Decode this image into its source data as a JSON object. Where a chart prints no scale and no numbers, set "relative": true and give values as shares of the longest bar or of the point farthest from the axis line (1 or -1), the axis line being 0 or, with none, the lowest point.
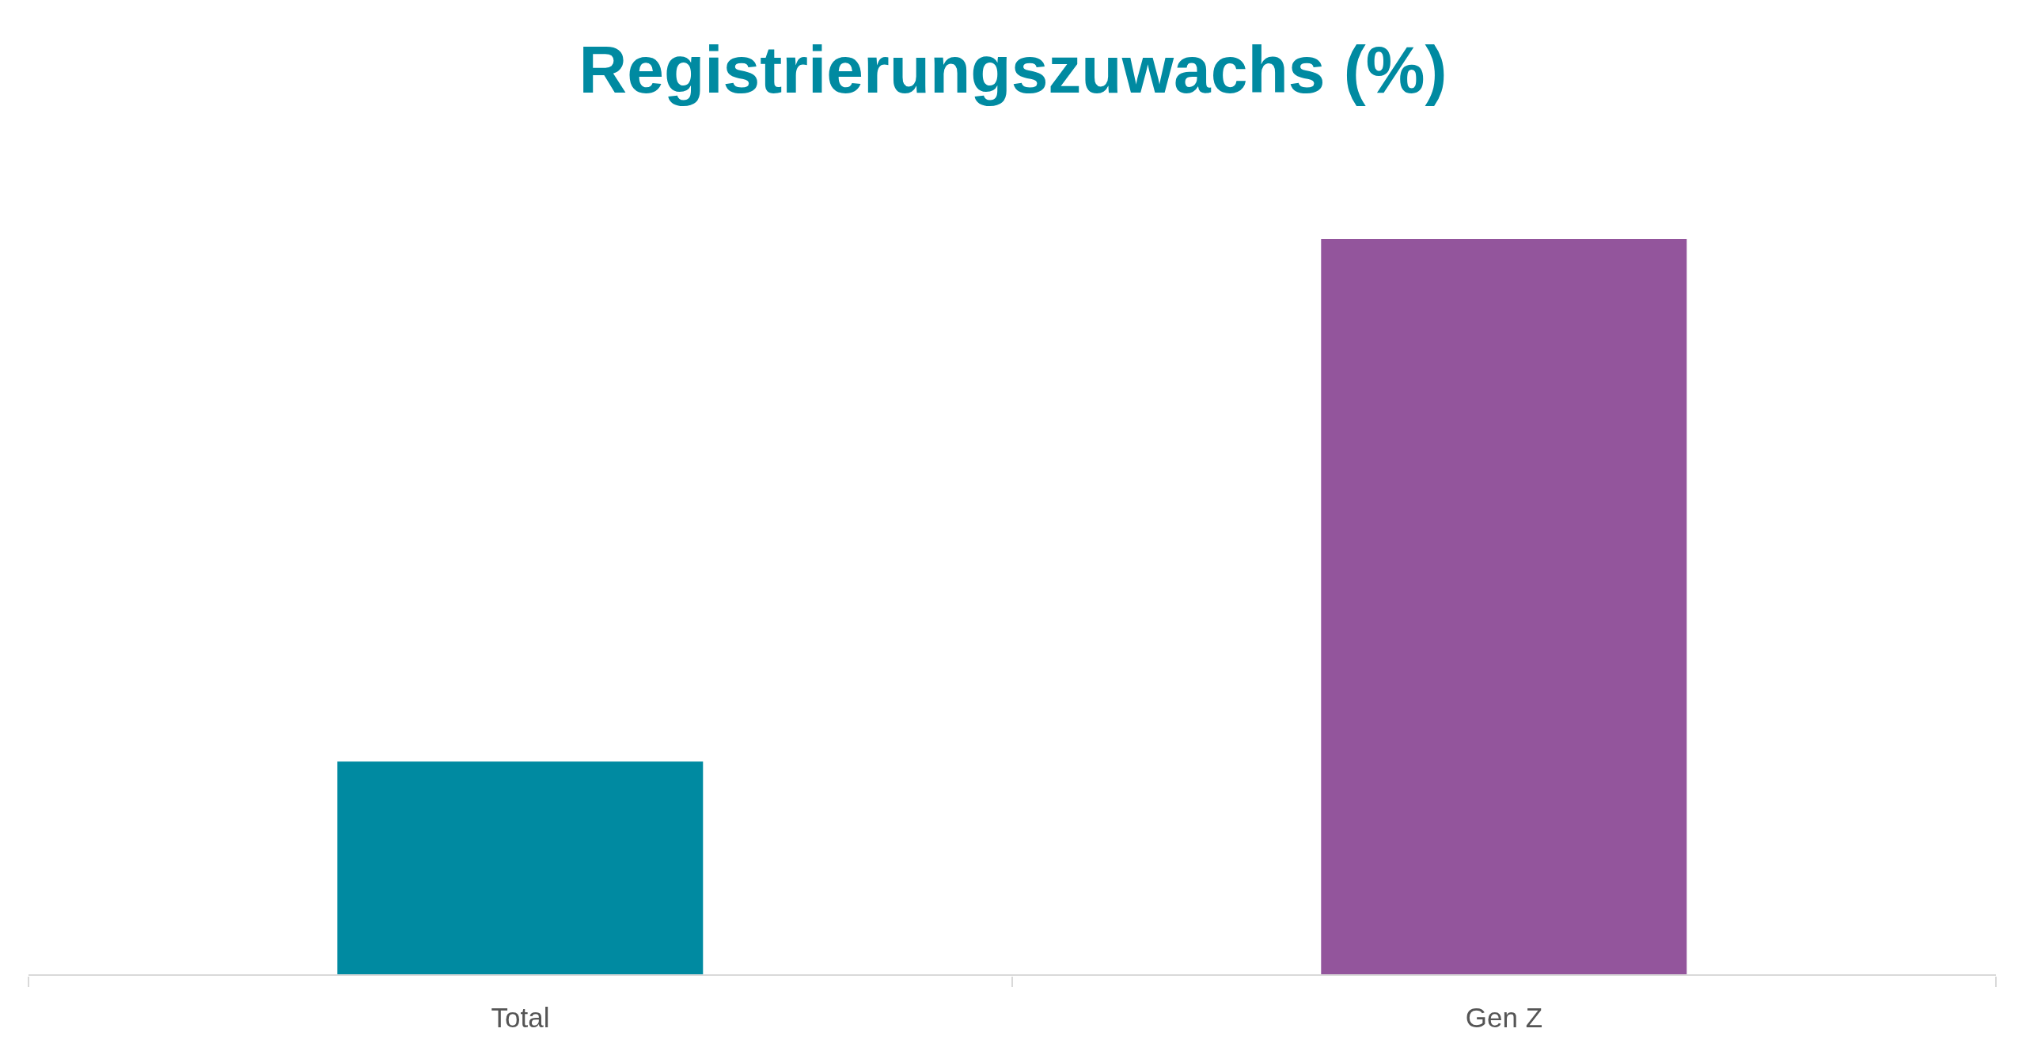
{
  "chart_data": {
    "type": "bar",
    "title": "Registrierungszuwachs (%)",
    "categories": [
      "Total",
      "Gen Z"
    ],
    "values": [
      0.29,
      1
    ],
    "colors": [
      "#008aa1",
      "#93559c"
    ],
    "relative": true
  }
}
